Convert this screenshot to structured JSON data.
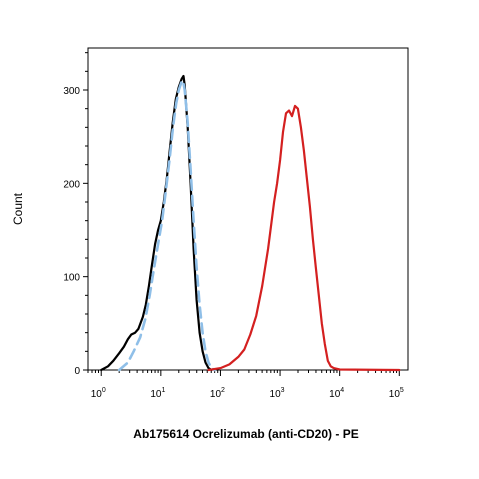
{
  "chart_data": {
    "type": "line",
    "xlabel": "Ab175614 Ocrelizumab (anti-CD20) - PE",
    "ylabel": "Count",
    "x_scale": "log",
    "xlim": [
      0.6,
      140000
    ],
    "ylim": [
      0,
      345
    ],
    "x_ticks": [
      {
        "base": "10",
        "exp": "0",
        "value": 1
      },
      {
        "base": "10",
        "exp": "1",
        "value": 10
      },
      {
        "base": "10",
        "exp": "2",
        "value": 100
      },
      {
        "base": "10",
        "exp": "3",
        "value": 1000
      },
      {
        "base": "10",
        "exp": "4",
        "value": 10000
      },
      {
        "base": "10",
        "exp": "5",
        "value": 100000
      }
    ],
    "y_ticks": [
      {
        "label": "0",
        "value": 0
      },
      {
        "label": "100",
        "value": 100
      },
      {
        "label": "200",
        "value": 200
      },
      {
        "label": "300",
        "value": 300
      }
    ],
    "grid": false,
    "legend": "none",
    "series": [
      {
        "style": "solid",
        "color": "#000000",
        "points": [
          [
            1.0,
            0
          ],
          [
            1.3,
            4
          ],
          [
            1.6,
            10
          ],
          [
            2.0,
            18
          ],
          [
            2.4,
            25
          ],
          [
            2.8,
            33
          ],
          [
            3.2,
            38
          ],
          [
            3.7,
            40
          ],
          [
            4.2,
            44
          ],
          [
            5.0,
            57
          ],
          [
            5.6,
            70
          ],
          [
            6.3,
            90
          ],
          [
            7.0,
            110
          ],
          [
            8.0,
            135
          ],
          [
            9.0,
            150
          ],
          [
            10.0,
            160
          ],
          [
            11.2,
            180
          ],
          [
            12.6,
            205
          ],
          [
            14.1,
            235
          ],
          [
            15.8,
            265
          ],
          [
            17.8,
            290
          ],
          [
            19.9,
            303
          ],
          [
            22.4,
            312
          ],
          [
            24.0,
            315
          ],
          [
            25.1,
            305
          ],
          [
            28.2,
            260
          ],
          [
            31.6,
            200
          ],
          [
            35.5,
            130
          ],
          [
            39.8,
            75
          ],
          [
            44.7,
            40
          ],
          [
            50.1,
            20
          ],
          [
            56.2,
            8
          ],
          [
            63.1,
            2
          ],
          [
            70.8,
            0
          ]
        ]
      },
      {
        "style": "dashed",
        "color": "#8fbfe8",
        "points": [
          [
            2.0,
            0
          ],
          [
            2.8,
            8
          ],
          [
            3.5,
            20
          ],
          [
            4.5,
            35
          ],
          [
            5.5,
            55
          ],
          [
            6.5,
            80
          ],
          [
            7.5,
            105
          ],
          [
            9.0,
            135
          ],
          [
            10.5,
            160
          ],
          [
            12.0,
            190
          ],
          [
            14.0,
            225
          ],
          [
            16.0,
            260
          ],
          [
            18.0,
            285
          ],
          [
            20.0,
            300
          ],
          [
            22.0,
            308
          ],
          [
            23.5,
            310
          ],
          [
            25.1,
            300
          ],
          [
            28.2,
            265
          ],
          [
            31.6,
            215
          ],
          [
            35.5,
            160
          ],
          [
            39.8,
            110
          ],
          [
            44.7,
            70
          ],
          [
            50.1,
            40
          ],
          [
            56.2,
            20
          ],
          [
            63.1,
            8
          ],
          [
            70.8,
            2
          ],
          [
            79.4,
            0
          ]
        ]
      },
      {
        "style": "solid",
        "color": "#d42020",
        "points": [
          [
            63.1,
            0
          ],
          [
            100.0,
            2
          ],
          [
            141.3,
            6
          ],
          [
            199.5,
            14
          ],
          [
            251.2,
            22
          ],
          [
            316.2,
            38
          ],
          [
            398.1,
            58
          ],
          [
            501.2,
            90
          ],
          [
            631.0,
            130
          ],
          [
            794.3,
            180
          ],
          [
            891.3,
            200
          ],
          [
            1000.0,
            225
          ],
          [
            1122.0,
            255
          ],
          [
            1258.9,
            275
          ],
          [
            1412.5,
            278
          ],
          [
            1584.9,
            272
          ],
          [
            1778.3,
            283
          ],
          [
            1995.3,
            280
          ],
          [
            2238.7,
            260
          ],
          [
            2511.9,
            235
          ],
          [
            2818.4,
            205
          ],
          [
            3162.3,
            175
          ],
          [
            3548.1,
            140
          ],
          [
            3981.1,
            110
          ],
          [
            4466.8,
            80
          ],
          [
            5011.9,
            50
          ],
          [
            5623.4,
            28
          ],
          [
            6309.6,
            10
          ],
          [
            7079.5,
            4
          ],
          [
            7943.3,
            2
          ],
          [
            10000.0,
            0.5
          ],
          [
            100000.0,
            0
          ]
        ]
      }
    ]
  }
}
